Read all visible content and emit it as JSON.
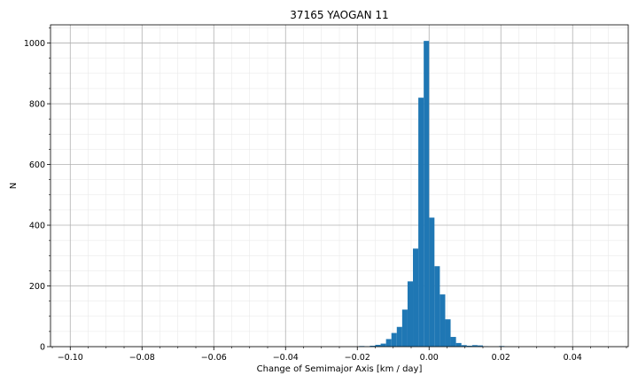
{
  "chart_data": {
    "type": "bar",
    "title": "37165 YAOGAN 11",
    "xlabel": "Change of Semimajor Axis [km / day]",
    "ylabel": "N",
    "xlim": [
      -0.1055,
      0.0555
    ],
    "ylim": [
      0,
      1060
    ],
    "grid": true,
    "minor_grid": true,
    "bar_color": "#1f77b4",
    "grid_color": "#b0b0b0",
    "x_ticks": [
      -0.1,
      -0.08,
      -0.06,
      -0.04,
      -0.02,
      0.0,
      0.02,
      0.04
    ],
    "x_tick_labels": [
      "−0.10",
      "−0.08",
      "−0.06",
      "−0.04",
      "−0.02",
      "0.00",
      "0.02",
      "0.04"
    ],
    "y_ticks": [
      0,
      200,
      400,
      600,
      800,
      1000
    ],
    "y_tick_labels": [
      "0",
      "200",
      "400",
      "600",
      "800",
      "1000"
    ],
    "bin_width": 0.0015,
    "bins": [
      {
        "x0": -0.0195,
        "count": 2
      },
      {
        "x0": -0.018,
        "count": 1
      },
      {
        "x0": -0.0165,
        "count": 3
      },
      {
        "x0": -0.015,
        "count": 6
      },
      {
        "x0": -0.0135,
        "count": 10
      },
      {
        "x0": -0.012,
        "count": 25
      },
      {
        "x0": -0.0105,
        "count": 45
      },
      {
        "x0": -0.009,
        "count": 65
      },
      {
        "x0": -0.0075,
        "count": 122
      },
      {
        "x0": -0.006,
        "count": 215
      },
      {
        "x0": -0.0045,
        "count": 323
      },
      {
        "x0": -0.003,
        "count": 820
      },
      {
        "x0": -0.0015,
        "count": 1007
      },
      {
        "x0": 0.0,
        "count": 425
      },
      {
        "x0": 0.0015,
        "count": 265
      },
      {
        "x0": 0.003,
        "count": 172
      },
      {
        "x0": 0.0045,
        "count": 90
      },
      {
        "x0": 0.006,
        "count": 32
      },
      {
        "x0": 0.0075,
        "count": 12
      },
      {
        "x0": 0.009,
        "count": 5
      },
      {
        "x0": 0.0105,
        "count": 3
      },
      {
        "x0": 0.012,
        "count": 5
      },
      {
        "x0": 0.0135,
        "count": 4
      },
      {
        "x0": 0.015,
        "count": 1
      },
      {
        "x0": 0.0195,
        "count": 2
      }
    ]
  }
}
